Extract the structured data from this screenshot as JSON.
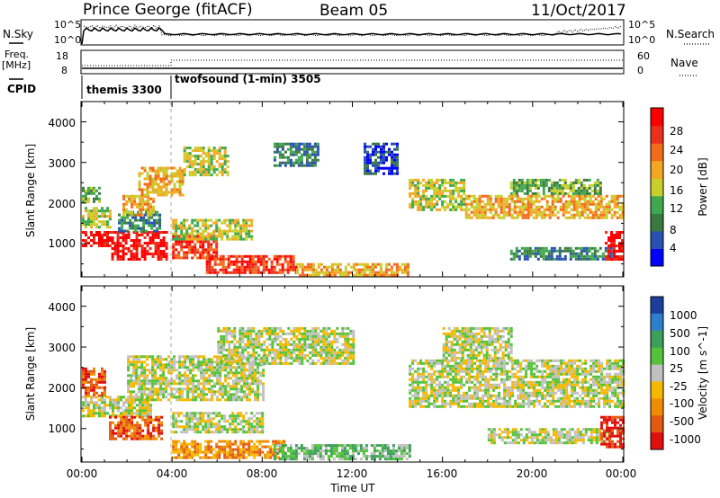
{
  "header": {
    "station": "Prince George (fitACF)",
    "beam": "Beam 05",
    "date": "11/Oct/2017"
  },
  "strip_labels": {
    "nsky": "N.Sky",
    "nsearch": "N.Search",
    "nsky_scale": [
      "10^5",
      "10^0"
    ],
    "nsearch_scale": [
      "10^5",
      "10^0"
    ],
    "freq_line1": "Freq.",
    "freq_line2": "[MHz]",
    "freq_ticks": [
      "18",
      "8"
    ],
    "nave_ticks": [
      "60",
      "0"
    ],
    "nave": "Nave",
    "cpid": "CPID"
  },
  "cpid_modes": [
    {
      "label": "themis 3300",
      "start_hour": 0
    },
    {
      "label": "twofsound (1-min) 3505",
      "start_hour": 4
    }
  ],
  "axes": {
    "ylabel": "Slant Range [km]",
    "xlabel": "Time UT",
    "x_ticks": [
      "00:00",
      "04:00",
      "08:00",
      "12:00",
      "16:00",
      "20:00",
      "00:00"
    ],
    "y_ticks": [
      "1000",
      "2000",
      "3000",
      "4000"
    ]
  },
  "colorbars": {
    "power": {
      "label": "Power [dB]",
      "ticks": [
        "4",
        "8",
        "12",
        "16",
        "20",
        "24",
        "28"
      ],
      "colors": [
        "#0000ff",
        "#2851b4",
        "#3a7a3e",
        "#3fa84f",
        "#c8cf2a",
        "#f5a623",
        "#f26a1b",
        "#e8301c",
        "#ff0000"
      ]
    },
    "velocity": {
      "label": "Velocity [m s^-1]",
      "ticks": [
        "1000",
        "500",
        "100",
        "25",
        "-25",
        "-100",
        "-500",
        "-1000"
      ],
      "colors": [
        "#1c3f9e",
        "#2e7fc9",
        "#3aa05a",
        "#54c23a",
        "#c0c0c0",
        "#f5b800",
        "#f08c00",
        "#e35a12",
        "#e01010"
      ]
    }
  },
  "chart_data": {
    "type": "heatmap",
    "x_range_hours": [
      0,
      24
    ],
    "y_range_km": [
      180,
      4500
    ],
    "power_clusters": [
      {
        "t0": 0.0,
        "t1": 1.3,
        "r0": 900,
        "r1": 1300,
        "level": 8
      },
      {
        "t0": 0.0,
        "t1": 1.2,
        "r0": 1400,
        "r1": 1900,
        "level": 4
      },
      {
        "t0": 0.0,
        "t1": 0.8,
        "r0": 2000,
        "r1": 2400,
        "level": 3
      },
      {
        "t0": 1.3,
        "t1": 3.8,
        "r0": 600,
        "r1": 1300,
        "level": 8
      },
      {
        "t0": 1.6,
        "t1": 3.5,
        "r0": 1300,
        "r1": 1800,
        "level": 2
      },
      {
        "t0": 1.8,
        "t1": 3.2,
        "r0": 1700,
        "r1": 2200,
        "level": 5
      },
      {
        "t0": 2.5,
        "t1": 4.5,
        "r0": 2200,
        "r1": 2900,
        "level": 5
      },
      {
        "t0": 4.0,
        "t1": 6.0,
        "r0": 600,
        "r1": 1200,
        "level": 7
      },
      {
        "t0": 4.0,
        "t1": 7.5,
        "r0": 1100,
        "r1": 1600,
        "level": 4
      },
      {
        "t0": 4.5,
        "t1": 6.5,
        "r0": 2700,
        "r1": 3400,
        "level": 4
      },
      {
        "t0": 5.5,
        "t1": 9.5,
        "r0": 250,
        "r1": 700,
        "level": 7
      },
      {
        "t0": 9.5,
        "t1": 14.5,
        "r0": 200,
        "r1": 500,
        "level": 5
      },
      {
        "t0": 8.5,
        "t1": 10.5,
        "r0": 2900,
        "r1": 3500,
        "level": 2
      },
      {
        "t0": 12.5,
        "t1": 14.0,
        "r0": 2700,
        "r1": 3500,
        "level": 1
      },
      {
        "t0": 14.5,
        "t1": 17.0,
        "r0": 1800,
        "r1": 2600,
        "level": 4
      },
      {
        "t0": 17.0,
        "t1": 24.0,
        "r0": 1600,
        "r1": 2200,
        "level": 5
      },
      {
        "t0": 19.0,
        "t1": 23.0,
        "r0": 2200,
        "r1": 2600,
        "level": 3
      },
      {
        "t0": 19.0,
        "t1": 23.5,
        "r0": 600,
        "r1": 900,
        "level": 2
      },
      {
        "t0": 23.2,
        "t1": 24.0,
        "r0": 600,
        "r1": 1300,
        "level": 8
      }
    ],
    "velocity_clusters": [
      {
        "t0": 0.0,
        "t1": 1.0,
        "r0": 1800,
        "r1": 2500,
        "level": 7
      },
      {
        "t0": 0.0,
        "t1": 3.0,
        "r0": 1300,
        "r1": 1800,
        "level": 4
      },
      {
        "t0": 1.2,
        "t1": 3.5,
        "r0": 700,
        "r1": 1300,
        "level": 7
      },
      {
        "t0": 2.0,
        "t1": 8.0,
        "r0": 1700,
        "r1": 2800,
        "level": 4
      },
      {
        "t0": 4.0,
        "t1": 8.0,
        "r0": 900,
        "r1": 1400,
        "level": 4
      },
      {
        "t0": 4.0,
        "t1": 9.0,
        "r0": 250,
        "r1": 700,
        "level": 6
      },
      {
        "t0": 6.0,
        "t1": 12.0,
        "r0": 2600,
        "r1": 3500,
        "level": 4
      },
      {
        "t0": 8.5,
        "t1": 14.5,
        "r0": 200,
        "r1": 600,
        "level": 3
      },
      {
        "t0": 14.5,
        "t1": 24.0,
        "r0": 1500,
        "r1": 2700,
        "level": 4
      },
      {
        "t0": 16.0,
        "t1": 19.0,
        "r0": 2700,
        "r1": 3500,
        "level": 4
      },
      {
        "t0": 18.0,
        "t1": 23.5,
        "r0": 600,
        "r1": 1000,
        "level": 4
      },
      {
        "t0": 23.0,
        "t1": 24.0,
        "r0": 500,
        "r1": 1300,
        "level": 8
      }
    ]
  }
}
